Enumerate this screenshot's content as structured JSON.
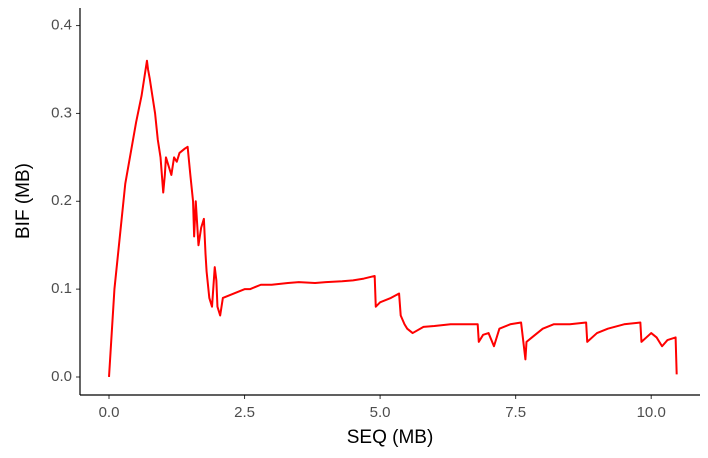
{
  "chart_data": {
    "type": "line",
    "x_label": "SEQ (MB)",
    "y_label": "BIF (MB)",
    "series": [
      {
        "name": null,
        "color": "#ff0000",
        "x": [
          0,
          0.02,
          0.1,
          0.3,
          0.5,
          0.6,
          0.65,
          0.7,
          0.72,
          0.75,
          0.8,
          0.85,
          0.9,
          0.95,
          1.0,
          1.03,
          1.05,
          1.1,
          1.15,
          1.2,
          1.25,
          1.3,
          1.4,
          1.45,
          1.5,
          1.55,
          1.57,
          1.6,
          1.65,
          1.7,
          1.75,
          1.78,
          1.8,
          1.85,
          1.9,
          1.95,
          1.98,
          2.0,
          2.05,
          2.1,
          2.3,
          2.5,
          2.6,
          2.8,
          3.0,
          3.3,
          3.5,
          3.8,
          4.0,
          4.3,
          4.5,
          4.7,
          4.9,
          4.92,
          5.0,
          5.2,
          5.35,
          5.38,
          5.45,
          5.5,
          5.6,
          5.8,
          6.0,
          6.3,
          6.5,
          6.8,
          6.82,
          6.9,
          7.0,
          7.1,
          7.2,
          7.4,
          7.6,
          7.68,
          7.7,
          7.8,
          8.0,
          8.2,
          8.5,
          8.8,
          8.82,
          9.0,
          9.2,
          9.5,
          9.8,
          9.82,
          10.0,
          10.1,
          10.2,
          10.3,
          10.45,
          10.47
        ],
        "values": [
          0.0,
          0.02,
          0.1,
          0.22,
          0.29,
          0.32,
          0.34,
          0.36,
          0.35,
          0.34,
          0.32,
          0.3,
          0.27,
          0.25,
          0.21,
          0.23,
          0.25,
          0.24,
          0.23,
          0.25,
          0.245,
          0.255,
          0.26,
          0.262,
          0.23,
          0.2,
          0.16,
          0.2,
          0.15,
          0.17,
          0.18,
          0.14,
          0.12,
          0.09,
          0.08,
          0.125,
          0.11,
          0.08,
          0.07,
          0.09,
          0.095,
          0.1,
          0.1,
          0.105,
          0.105,
          0.107,
          0.108,
          0.107,
          0.108,
          0.109,
          0.11,
          0.112,
          0.115,
          0.08,
          0.085,
          0.09,
          0.095,
          0.07,
          0.06,
          0.055,
          0.05,
          0.057,
          0.058,
          0.06,
          0.06,
          0.06,
          0.04,
          0.048,
          0.05,
          0.035,
          0.055,
          0.06,
          0.062,
          0.02,
          0.04,
          0.045,
          0.055,
          0.06,
          0.06,
          0.062,
          0.04,
          0.05,
          0.055,
          0.06,
          0.062,
          0.04,
          0.05,
          0.045,
          0.035,
          0.042,
          0.045,
          0.003
        ]
      }
    ],
    "xlim": [
      -0.535,
      10.9
    ],
    "ylim": [
      -0.0205,
      0.42
    ],
    "xticks": [
      {
        "value": 0,
        "label": "0.0"
      },
      2.5,
      {
        "value": 5,
        "label": "5.0"
      },
      7.5,
      {
        "value": 10,
        "label": "10.0"
      }
    ],
    "yticks": [
      {
        "value": 0,
        "label": "0.0"
      },
      0.1,
      0.2,
      0.3,
      0.4
    ],
    "grid": false
  }
}
